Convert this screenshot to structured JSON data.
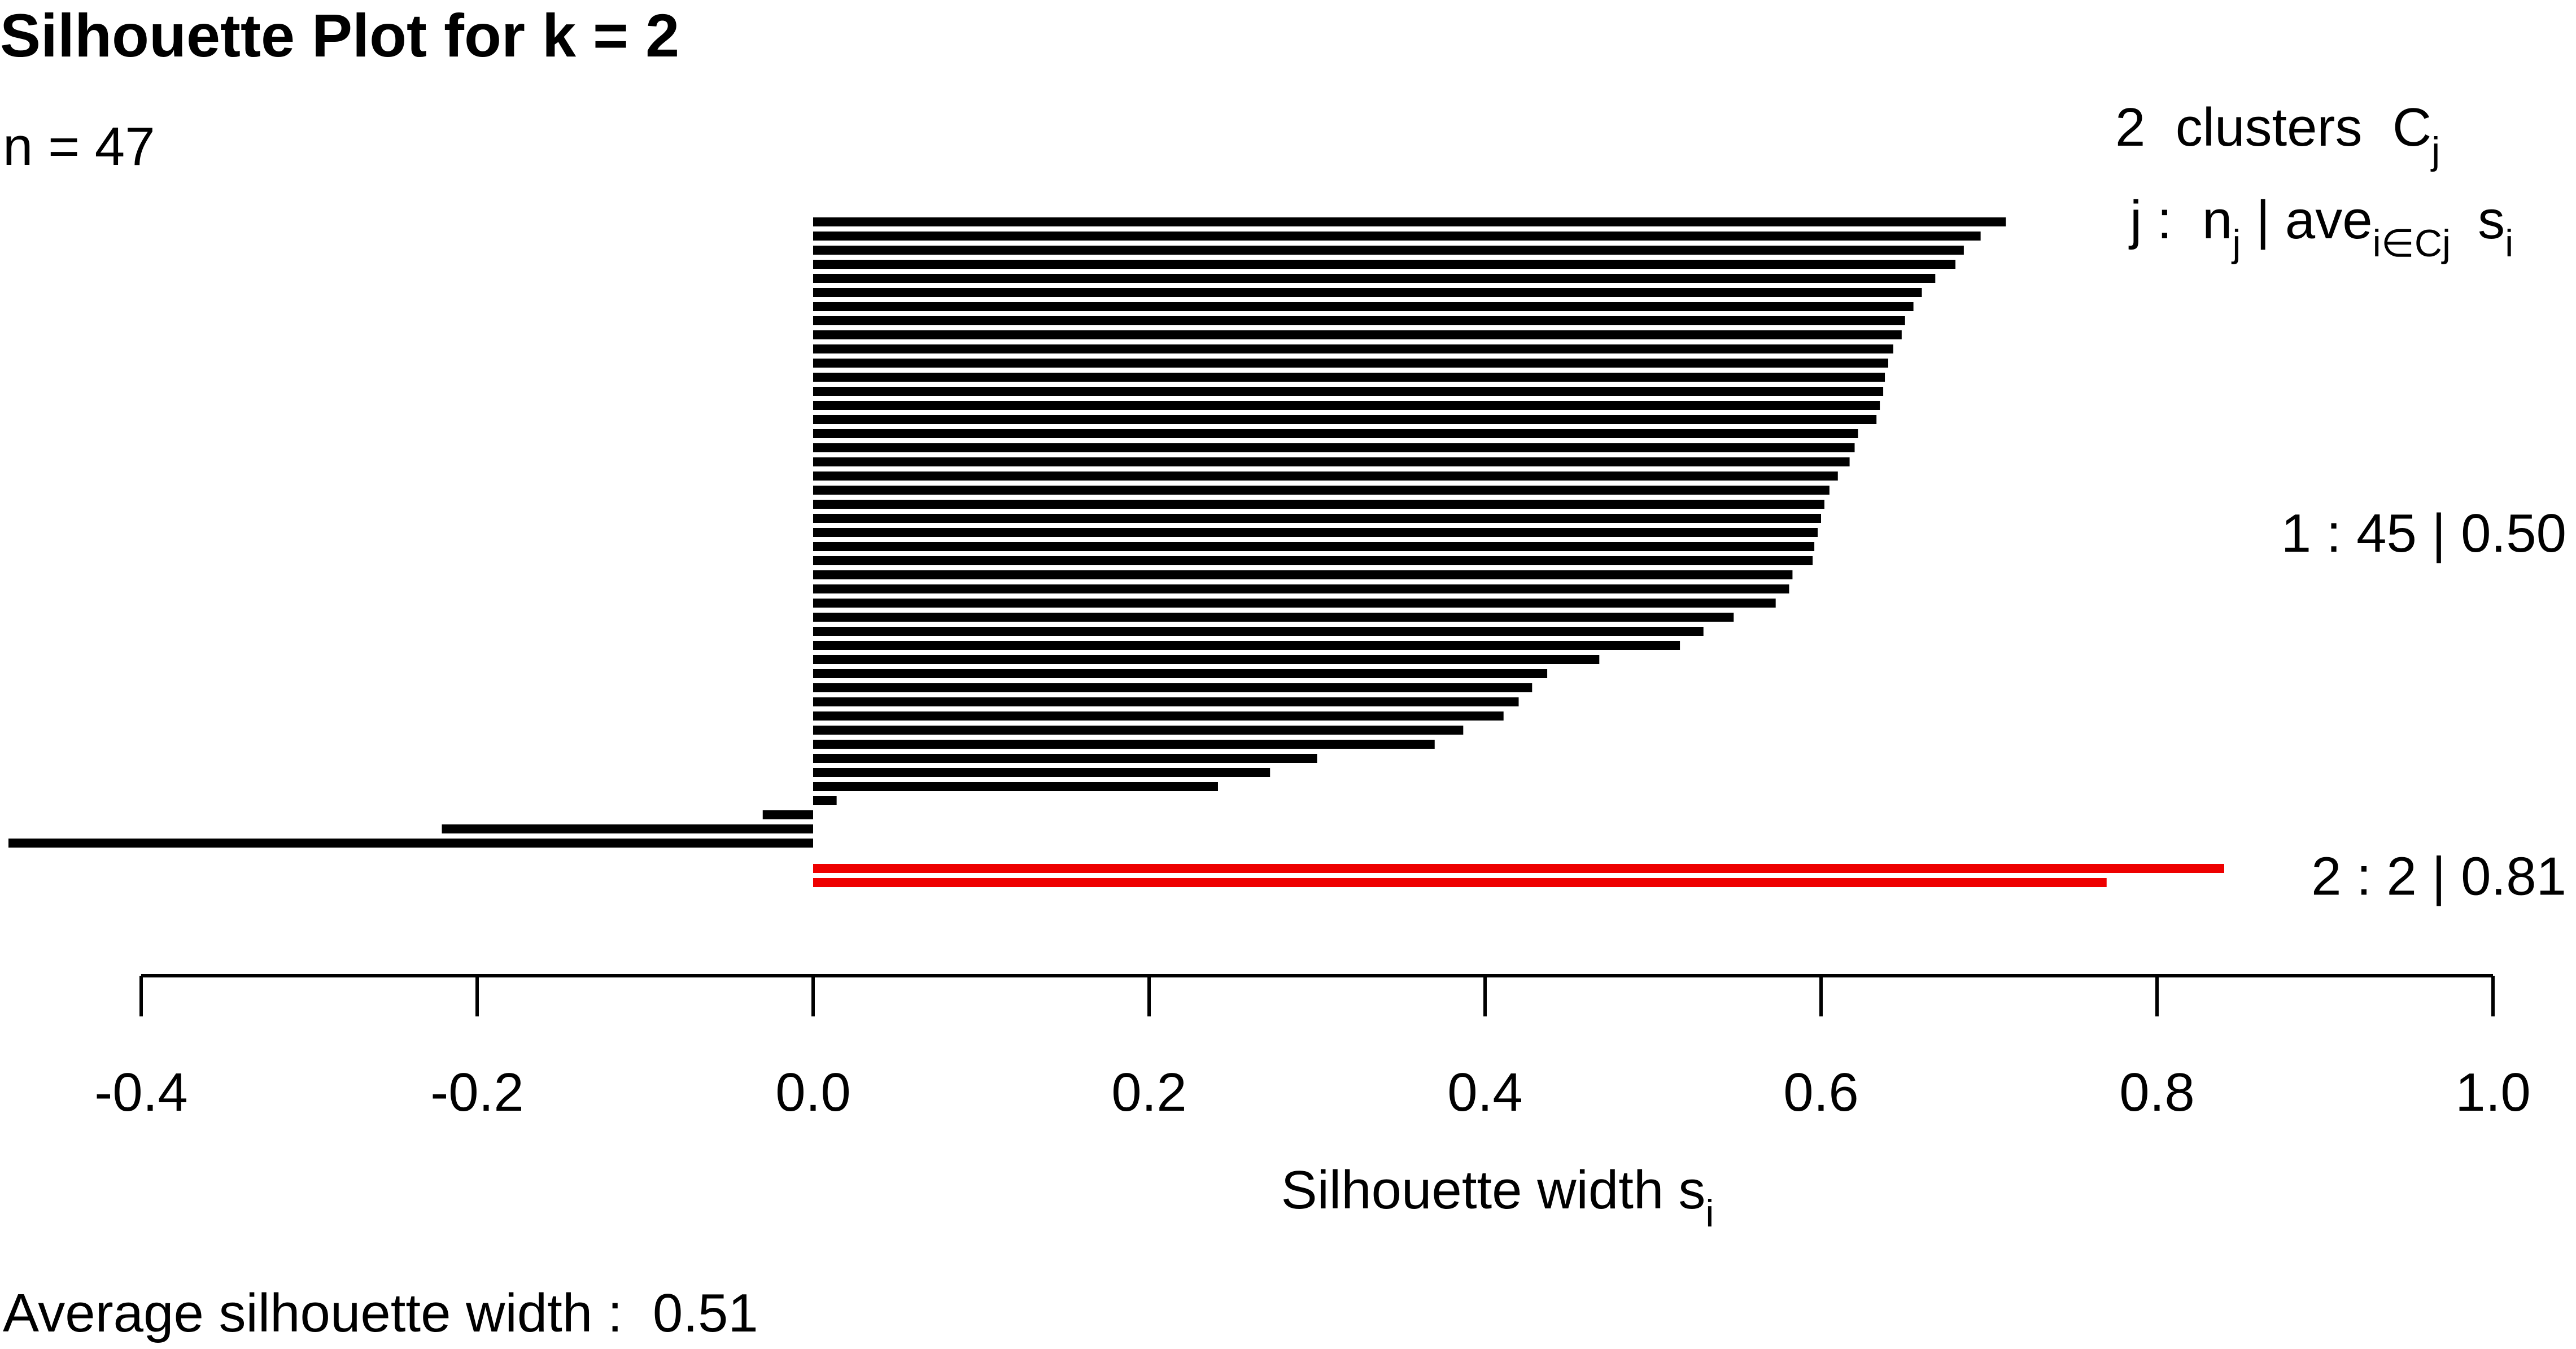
{
  "chart_data": {
    "type": "bar",
    "orientation": "horizontal",
    "title": "Silhouette Plot for k = 2",
    "n_label": "n = 47",
    "xlabel": "Silhouette width",
    "xlabel_sub": "i",
    "xlabel_main_letter": "s",
    "xlim": [
      -0.4,
      1.0
    ],
    "xticks": [
      "-0.4",
      "-0.2",
      "0.0",
      "0.2",
      "0.4",
      "0.6",
      "0.8",
      "1.0"
    ],
    "grid": false,
    "legend_header": {
      "line1_main": "2  clusters  C",
      "line1_sub": "j",
      "line2_j": "j :  n",
      "line2_j_sub": "j",
      "line2_mid": " | ave",
      "line2_mid_sub": "i∈Cj",
      "line2_s": "s",
      "line2_s_sub": "i"
    },
    "clusters": [
      {
        "label": "1 :   45  |  0.50",
        "size": 45,
        "avg_width": 0.5,
        "color": "#000000",
        "values": [
          0.71,
          0.695,
          0.685,
          0.68,
          0.668,
          0.66,
          0.655,
          0.65,
          0.648,
          0.643,
          0.64,
          0.638,
          0.637,
          0.635,
          0.633,
          0.622,
          0.62,
          0.617,
          0.61,
          0.605,
          0.602,
          0.6,
          0.598,
          0.596,
          0.595,
          0.583,
          0.581,
          0.573,
          0.548,
          0.53,
          0.516,
          0.468,
          0.437,
          0.428,
          0.42,
          0.411,
          0.387,
          0.37,
          0.3,
          0.272,
          0.241,
          0.014,
          -0.03,
          -0.221,
          -0.479
        ]
      },
      {
        "label": "2 :   2  |  0.81",
        "size": 2,
        "avg_width": 0.81,
        "color": "#ee0000",
        "values": [
          0.84,
          0.77
        ]
      }
    ],
    "footer": "Average silhouette width :  0.51"
  }
}
